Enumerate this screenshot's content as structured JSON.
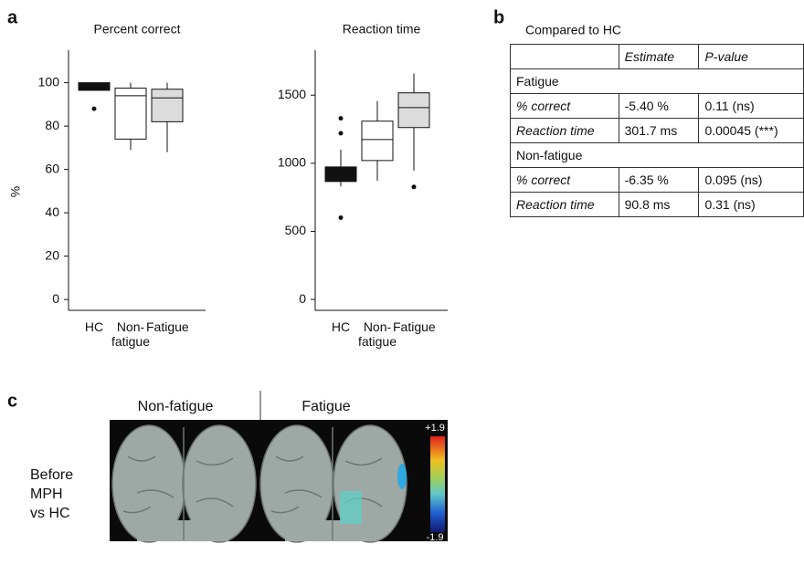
{
  "panels": [
    "a",
    "b",
    "c"
  ],
  "chart_data": [
    {
      "type": "box",
      "title": "Percent correct",
      "y_label": "%",
      "categories": [
        "HC",
        "Non-fatigue",
        "Fatigue"
      ],
      "ylim": [
        -5,
        115
      ],
      "yticks": [
        0,
        20,
        40,
        60,
        80,
        100
      ],
      "boxes": [
        {
          "whisker_low": 96.5,
          "q1": 96.5,
          "median": 98.5,
          "q3": 100,
          "whisker_high": 100,
          "outliers": [
            88
          ],
          "color": "#111111"
        },
        {
          "whisker_low": 69,
          "q1": 74,
          "median": 94,
          "q3": 97.5,
          "whisker_high": 100,
          "outliers": [],
          "color": "#ffffff"
        },
        {
          "whisker_low": 68,
          "q1": 82,
          "median": 93,
          "q3": 97,
          "whisker_high": 100,
          "outliers": [],
          "color": "#dcdcdc"
        }
      ]
    },
    {
      "type": "box",
      "title": "Reaction time",
      "categories": [
        "HC",
        "Non-fatigue",
        "Fatigue"
      ],
      "ylim": [
        -80,
        1830
      ],
      "yticks": [
        0,
        500,
        1000,
        1500
      ],
      "boxes": [
        {
          "whisker_low": 830,
          "q1": 866,
          "median": 926,
          "q3": 973,
          "whisker_high": 1100,
          "outliers": [
            1330,
            1220,
            600
          ],
          "color": "#111111"
        },
        {
          "whisker_low": 872,
          "q1": 1020,
          "median": 1174,
          "q3": 1309,
          "whisker_high": 1456,
          "outliers": [],
          "color": "#ffffff"
        },
        {
          "whisker_low": 946,
          "q1": 1262,
          "median": 1409,
          "q3": 1517,
          "whisker_high": 1658,
          "outliers": [
            826
          ],
          "color": "#dcdcdc"
        }
      ]
    }
  ],
  "table": {
    "caption": "Compared to HC",
    "header": [
      "Estimate",
      "P-value"
    ],
    "groups": [
      {
        "name": "Fatigue",
        "rows": [
          [
            "% correct",
            "-5.40 %",
            "0.11 (ns)"
          ],
          [
            "Reaction time",
            "301.7 ms",
            "0.00045 (***)"
          ]
        ]
      },
      {
        "name": "Non-fatigue",
        "rows": [
          [
            "% correct",
            "-6.35 %",
            "0.095 (ns)"
          ],
          [
            "Reaction time",
            "90.8 ms",
            "0.31 (ns)"
          ]
        ]
      }
    ]
  },
  "brain": {
    "columns": [
      "Non-fatigue",
      "Fatigue"
    ],
    "row_label": [
      "Before",
      "MPH",
      "vs HC"
    ],
    "colorbar": {
      "max": "+1.9",
      "min": "-1.9"
    }
  }
}
